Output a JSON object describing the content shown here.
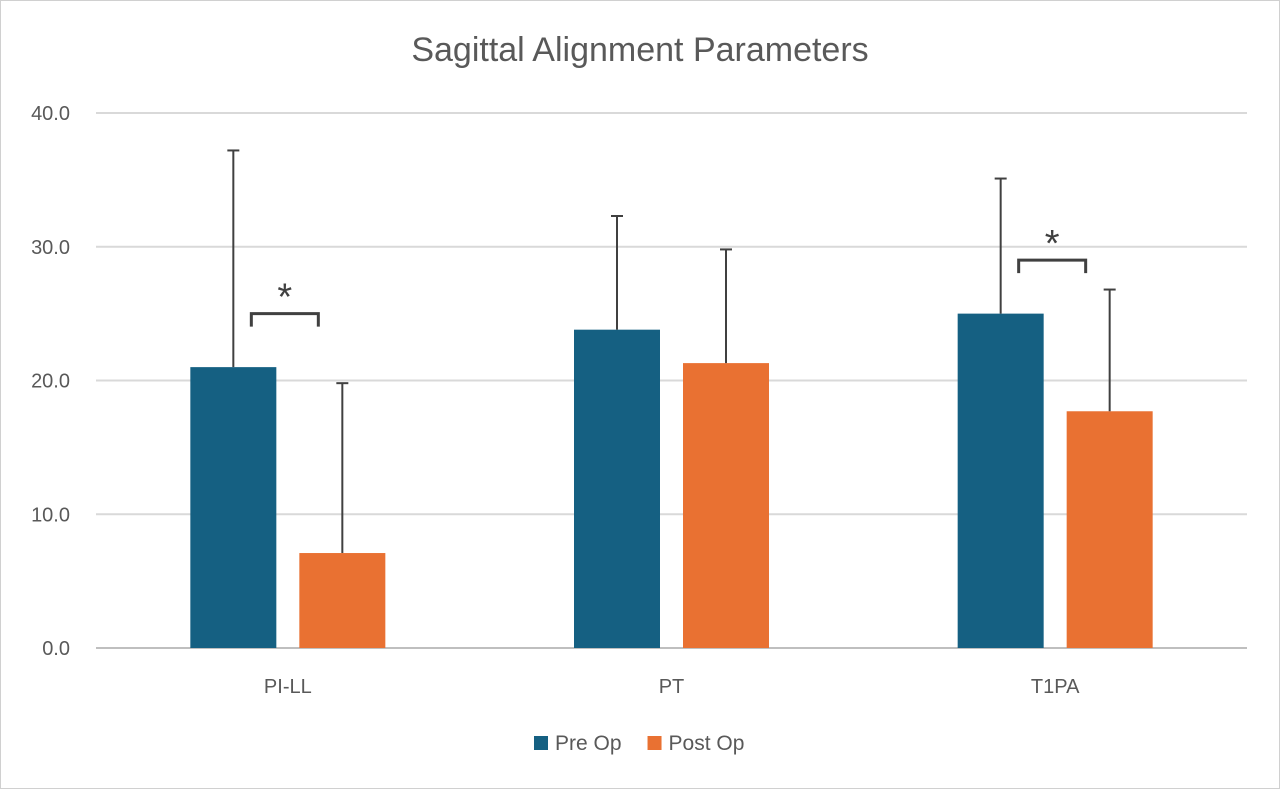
{
  "chart_data": {
    "type": "bar",
    "title": "Sagittal Alignment Parameters",
    "xlabel": "",
    "ylabel": "",
    "ylim": [
      0,
      40
    ],
    "yticks": [
      "0.0",
      "10.0",
      "20.0",
      "30.0",
      "40.0"
    ],
    "grid": true,
    "legend_position": "bottom",
    "categories": [
      "PI-LL",
      "PT",
      "T1PA"
    ],
    "series": [
      {
        "name": "Pre Op",
        "color": "#156082",
        "values": [
          21.0,
          23.8,
          25.0
        ],
        "error_plus": [
          16.2,
          8.5,
          10.1
        ]
      },
      {
        "name": "Post Op",
        "color": "#E97132",
        "values": [
          7.1,
          21.3,
          17.7
        ],
        "error_plus": [
          12.7,
          8.5,
          9.1
        ]
      }
    ],
    "annotations": [
      {
        "text": "*",
        "category": "PI-LL",
        "y": 25.0
      },
      {
        "text": "*",
        "category": "T1PA",
        "y": 29.0
      }
    ]
  }
}
